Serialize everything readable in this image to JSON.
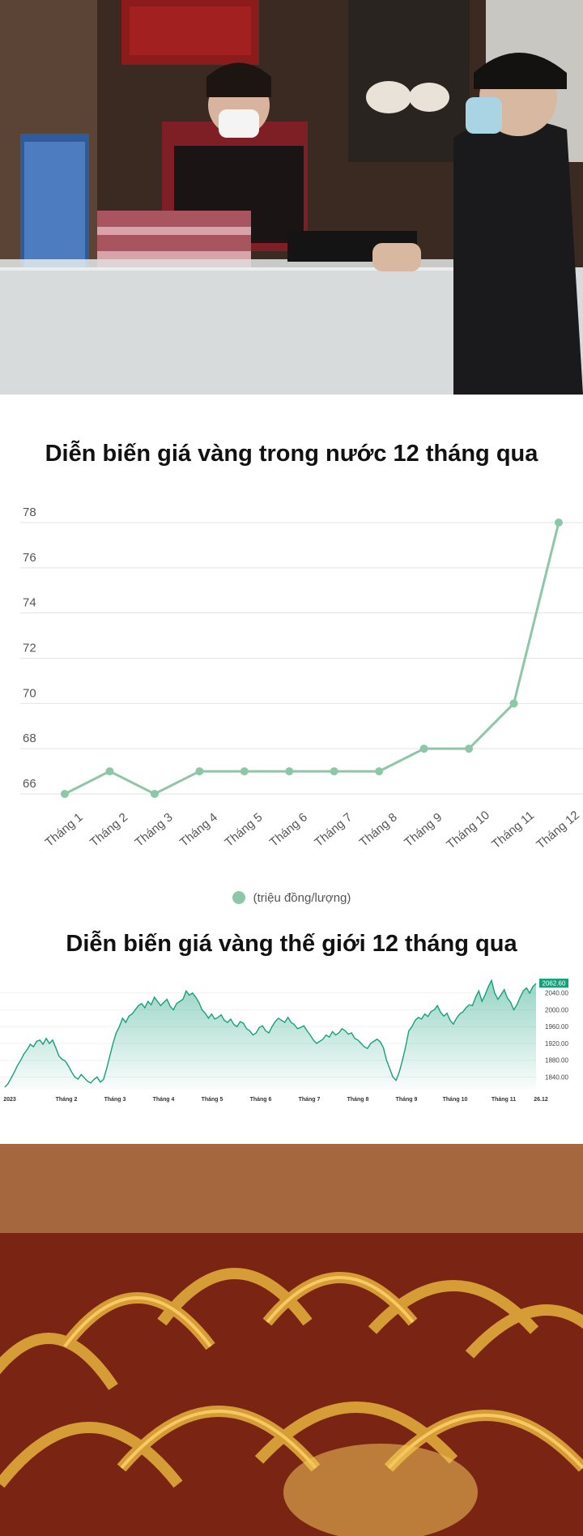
{
  "chart_data": [
    {
      "type": "line",
      "title": "Diễn biến giá vàng trong nước 12 tháng qua",
      "categories": [
        "Tháng 1",
        "Tháng 2",
        "Tháng 3",
        "Tháng 4",
        "Tháng 5",
        "Tháng 6",
        "Tháng 7",
        "Tháng 8",
        "Tháng 9",
        "Tháng 10",
        "Tháng 11",
        "Tháng 12"
      ],
      "series": [
        {
          "name": "(triệu đồng/lượng)",
          "values": [
            66,
            67,
            66,
            67,
            67,
            67,
            67,
            67,
            68,
            68,
            70,
            78
          ],
          "color": "#8ec7a8"
        }
      ],
      "yticks": [
        66,
        68,
        70,
        72,
        74,
        76,
        78
      ],
      "ylim": [
        66,
        78
      ],
      "grid": true,
      "legend_position": "bottom-center"
    },
    {
      "type": "area",
      "title": "Diễn biến giá vàng thế giới 12 tháng qua",
      "x_labels": [
        "2023",
        "Tháng 2",
        "Tháng 3",
        "Tháng 4",
        "Tháng 5",
        "Tháng 6",
        "Tháng 7",
        "Tháng 8",
        "Tháng 9",
        "Tháng 10",
        "Tháng 11",
        "26.12"
      ],
      "yticks": [
        1840,
        1880,
        1920,
        1960,
        2000,
        2040
      ],
      "ylim": [
        1810,
        2080
      ],
      "last_price": "2062.60",
      "values": [
        1816,
        1824,
        1838,
        1852,
        1868,
        1880,
        1895,
        1905,
        1918,
        1912,
        1925,
        1928,
        1918,
        1932,
        1920,
        1928,
        1910,
        1890,
        1882,
        1878,
        1866,
        1852,
        1840,
        1835,
        1846,
        1838,
        1830,
        1826,
        1834,
        1840,
        1828,
        1834,
        1860,
        1890,
        1920,
        1945,
        1960,
        1980,
        1970,
        1985,
        1990,
        2000,
        2010,
        2015,
        2005,
        2020,
        2012,
        2030,
        2020,
        2010,
        2018,
        2025,
        2008,
        2000,
        2015,
        2020,
        2025,
        2045,
        2035,
        2040,
        2030,
        2018,
        2000,
        1992,
        1980,
        1990,
        1978,
        1982,
        1988,
        1975,
        1970,
        1978,
        1965,
        1960,
        1972,
        1968,
        1955,
        1950,
        1940,
        1945,
        1958,
        1962,
        1950,
        1945,
        1960,
        1972,
        1980,
        1975,
        1970,
        1982,
        1970,
        1965,
        1955,
        1958,
        1962,
        1950,
        1940,
        1928,
        1920,
        1925,
        1930,
        1940,
        1935,
        1948,
        1940,
        1945,
        1955,
        1950,
        1942,
        1945,
        1932,
        1928,
        1920,
        1912,
        1908,
        1920,
        1925,
        1930,
        1924,
        1910,
        1880,
        1860,
        1840,
        1832,
        1852,
        1880,
        1912,
        1950,
        1960,
        1975,
        1982,
        1978,
        1990,
        1984,
        1996,
        2000,
        2010,
        1994,
        1985,
        1992,
        1975,
        1966,
        1980,
        1990,
        1995,
        2005,
        2012,
        2010,
        2030,
        2045,
        2020,
        2036,
        2055,
        2070,
        2040,
        2025,
        2036,
        2048,
        2028,
        2018,
        2000,
        2012,
        2030,
        2045,
        2052,
        2040,
        2055,
        2062.6
      ],
      "area_color": "#16a07a",
      "grid": true,
      "axis_position": "right"
    }
  ]
}
